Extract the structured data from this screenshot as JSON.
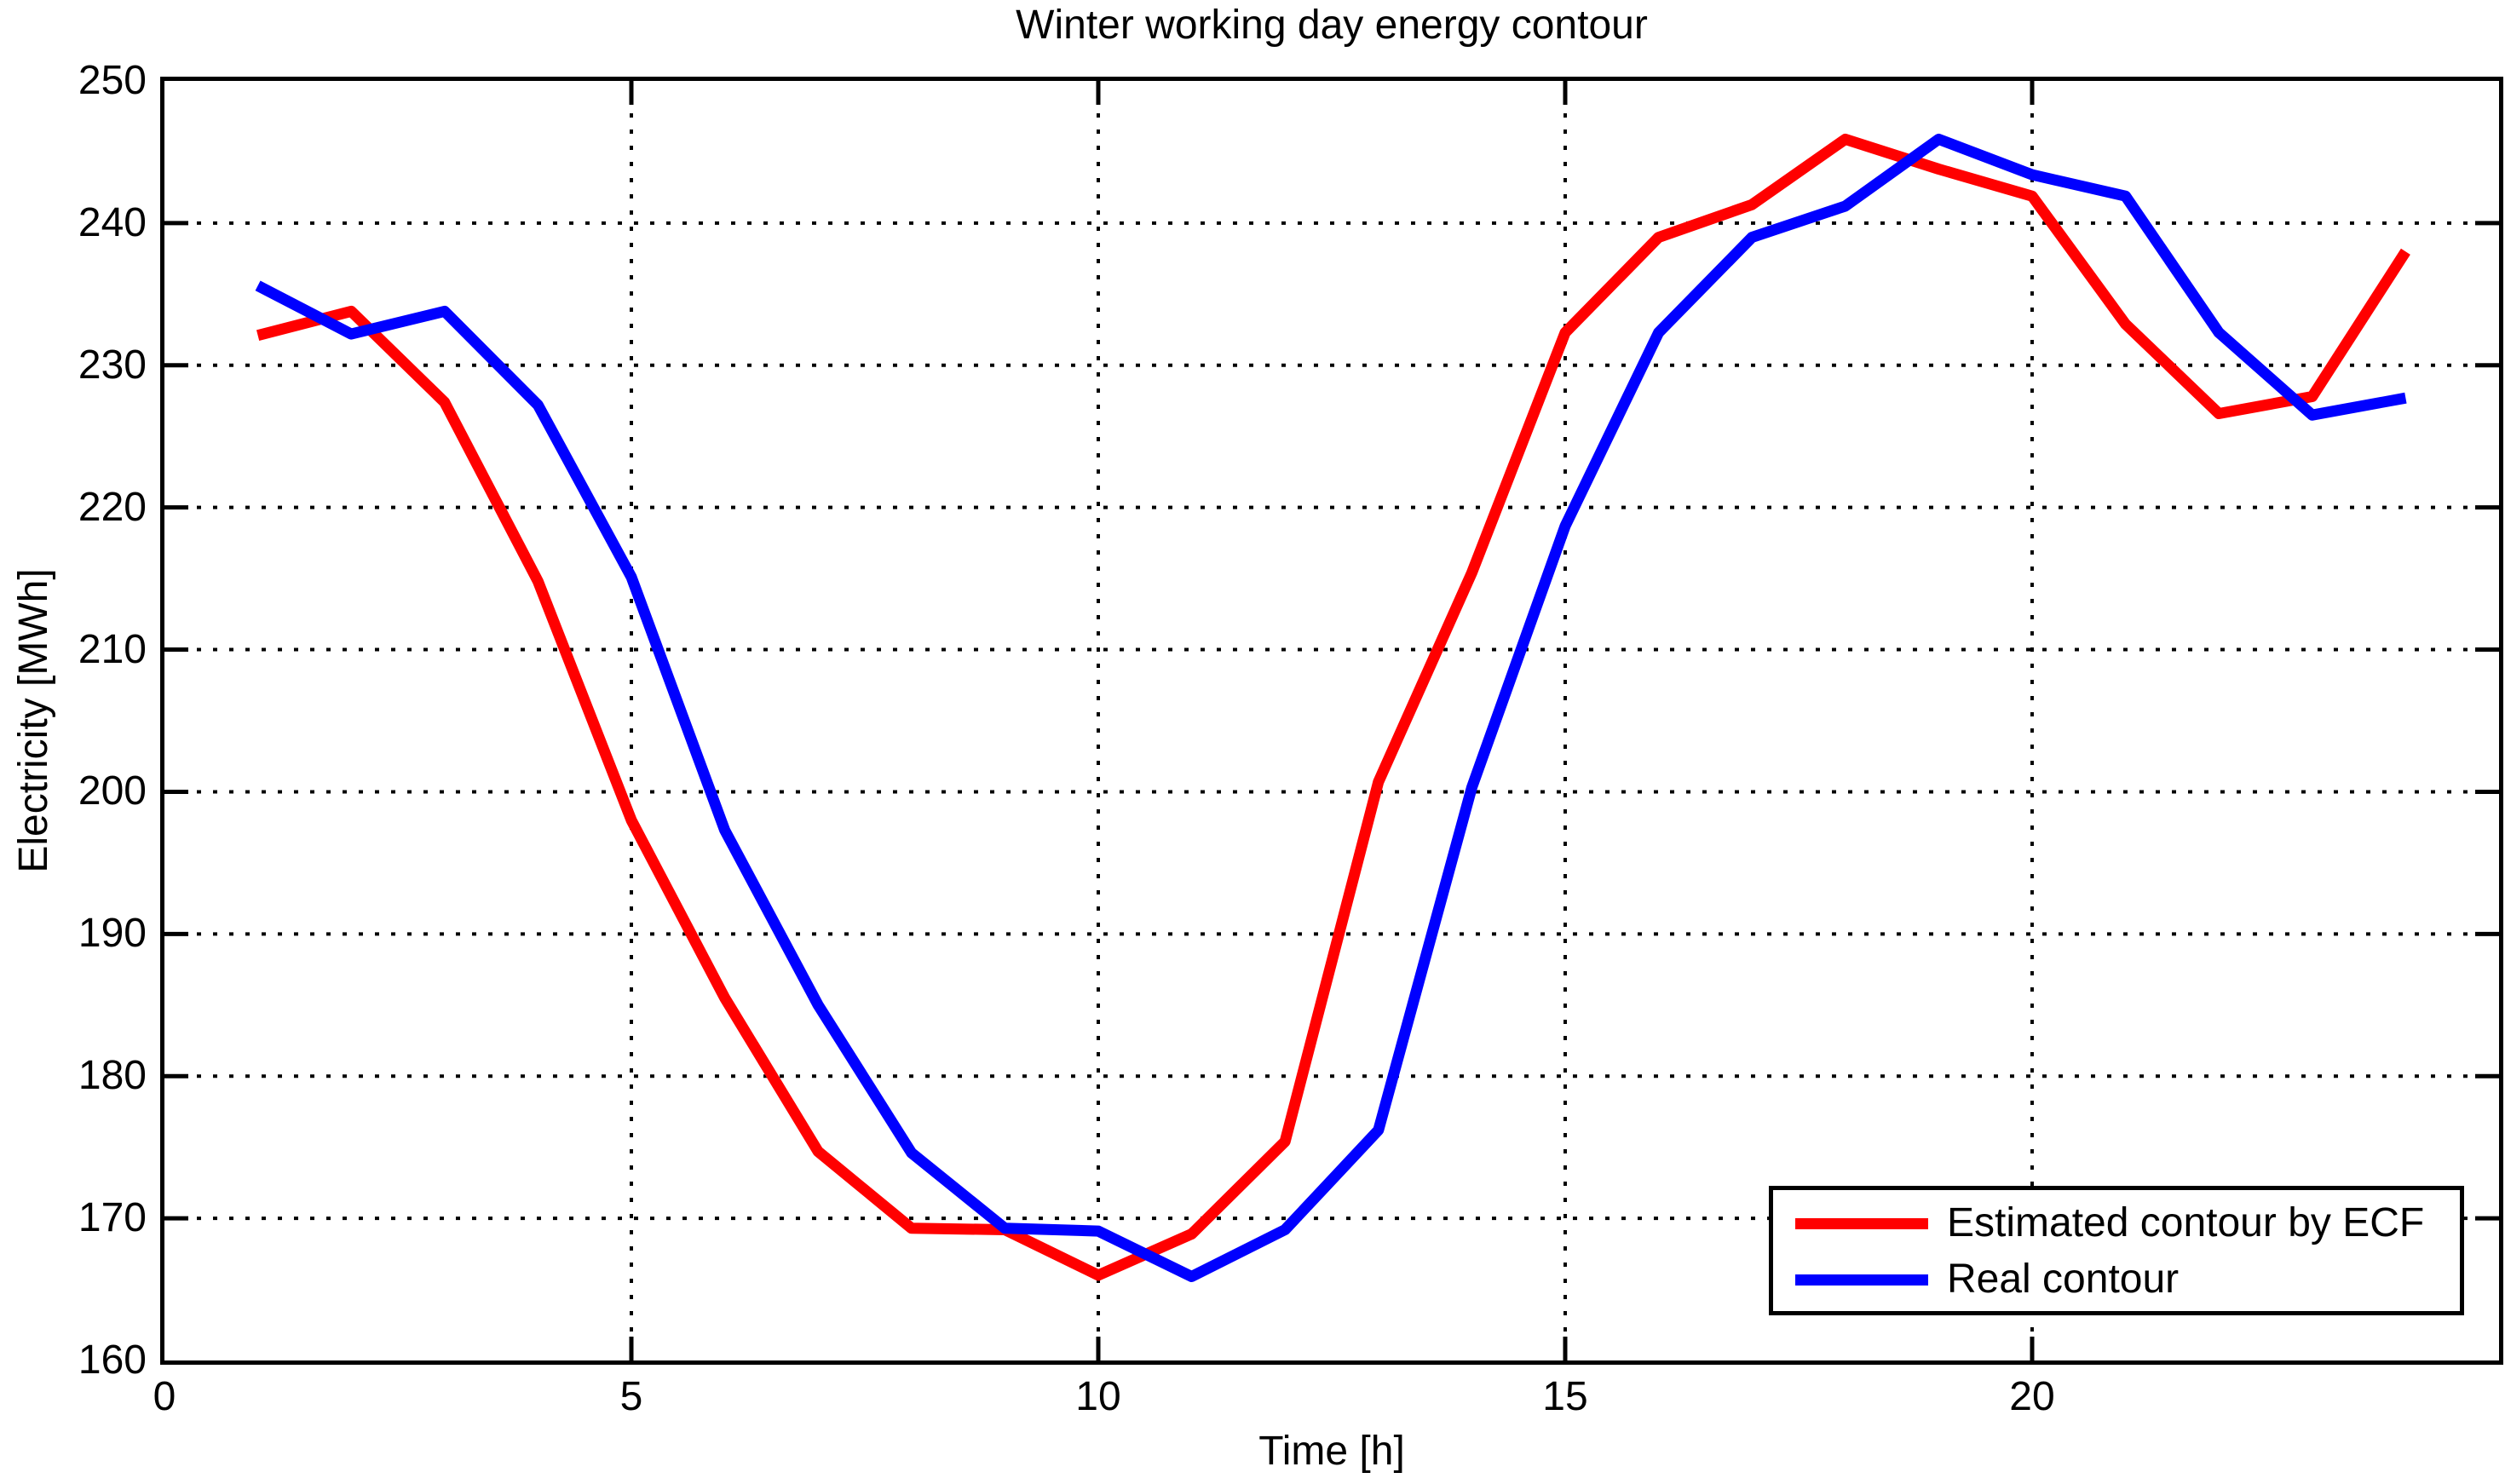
{
  "figure": {
    "title": "Winter working day energy contour",
    "xlabel": "Time [h]",
    "ylabel": "Electricity [MWh]"
  },
  "chart_data": {
    "type": "line",
    "title": "Winter working day energy contour",
    "xlabel": "Time [h]",
    "ylabel": "Electricity [MWh]",
    "xlim": [
      0,
      25
    ],
    "ylim": [
      160,
      250
    ],
    "xticks": [
      0,
      5,
      10,
      15,
      20
    ],
    "yticks": [
      160,
      170,
      180,
      190,
      200,
      210,
      220,
      230,
      240,
      250
    ],
    "grid": "dotted",
    "legend_position": "lower-right",
    "x": [
      1,
      2,
      3,
      4,
      5,
      6,
      7,
      8,
      9,
      10,
      11,
      12,
      13,
      14,
      15,
      16,
      17,
      18,
      19,
      20,
      21,
      22,
      23,
      24
    ],
    "series": [
      {
        "name": "Estimated contour by ECF",
        "color": "#ff0000",
        "values": [
          232.1,
          233.8,
          227.4,
          214.8,
          198.0,
          185.5,
          174.7,
          169.3,
          169.2,
          166.0,
          168.9,
          175.4,
          200.7,
          215.4,
          232.3,
          239.0,
          241.3,
          245.9,
          243.8,
          241.9,
          232.9,
          226.6,
          227.8,
          238.0
        ]
      },
      {
        "name": "Real contour",
        "color": "#0000ff",
        "values": [
          235.6,
          232.2,
          233.8,
          227.2,
          215.1,
          197.3,
          185.0,
          174.6,
          169.3,
          169.1,
          165.9,
          169.2,
          176.2,
          200.3,
          218.7,
          232.3,
          239.0,
          241.2,
          245.9,
          243.4,
          241.9,
          232.3,
          226.5,
          227.7
        ]
      }
    ],
    "axis_color": "#000000",
    "grid_color": "#000000",
    "line_width": 13
  }
}
